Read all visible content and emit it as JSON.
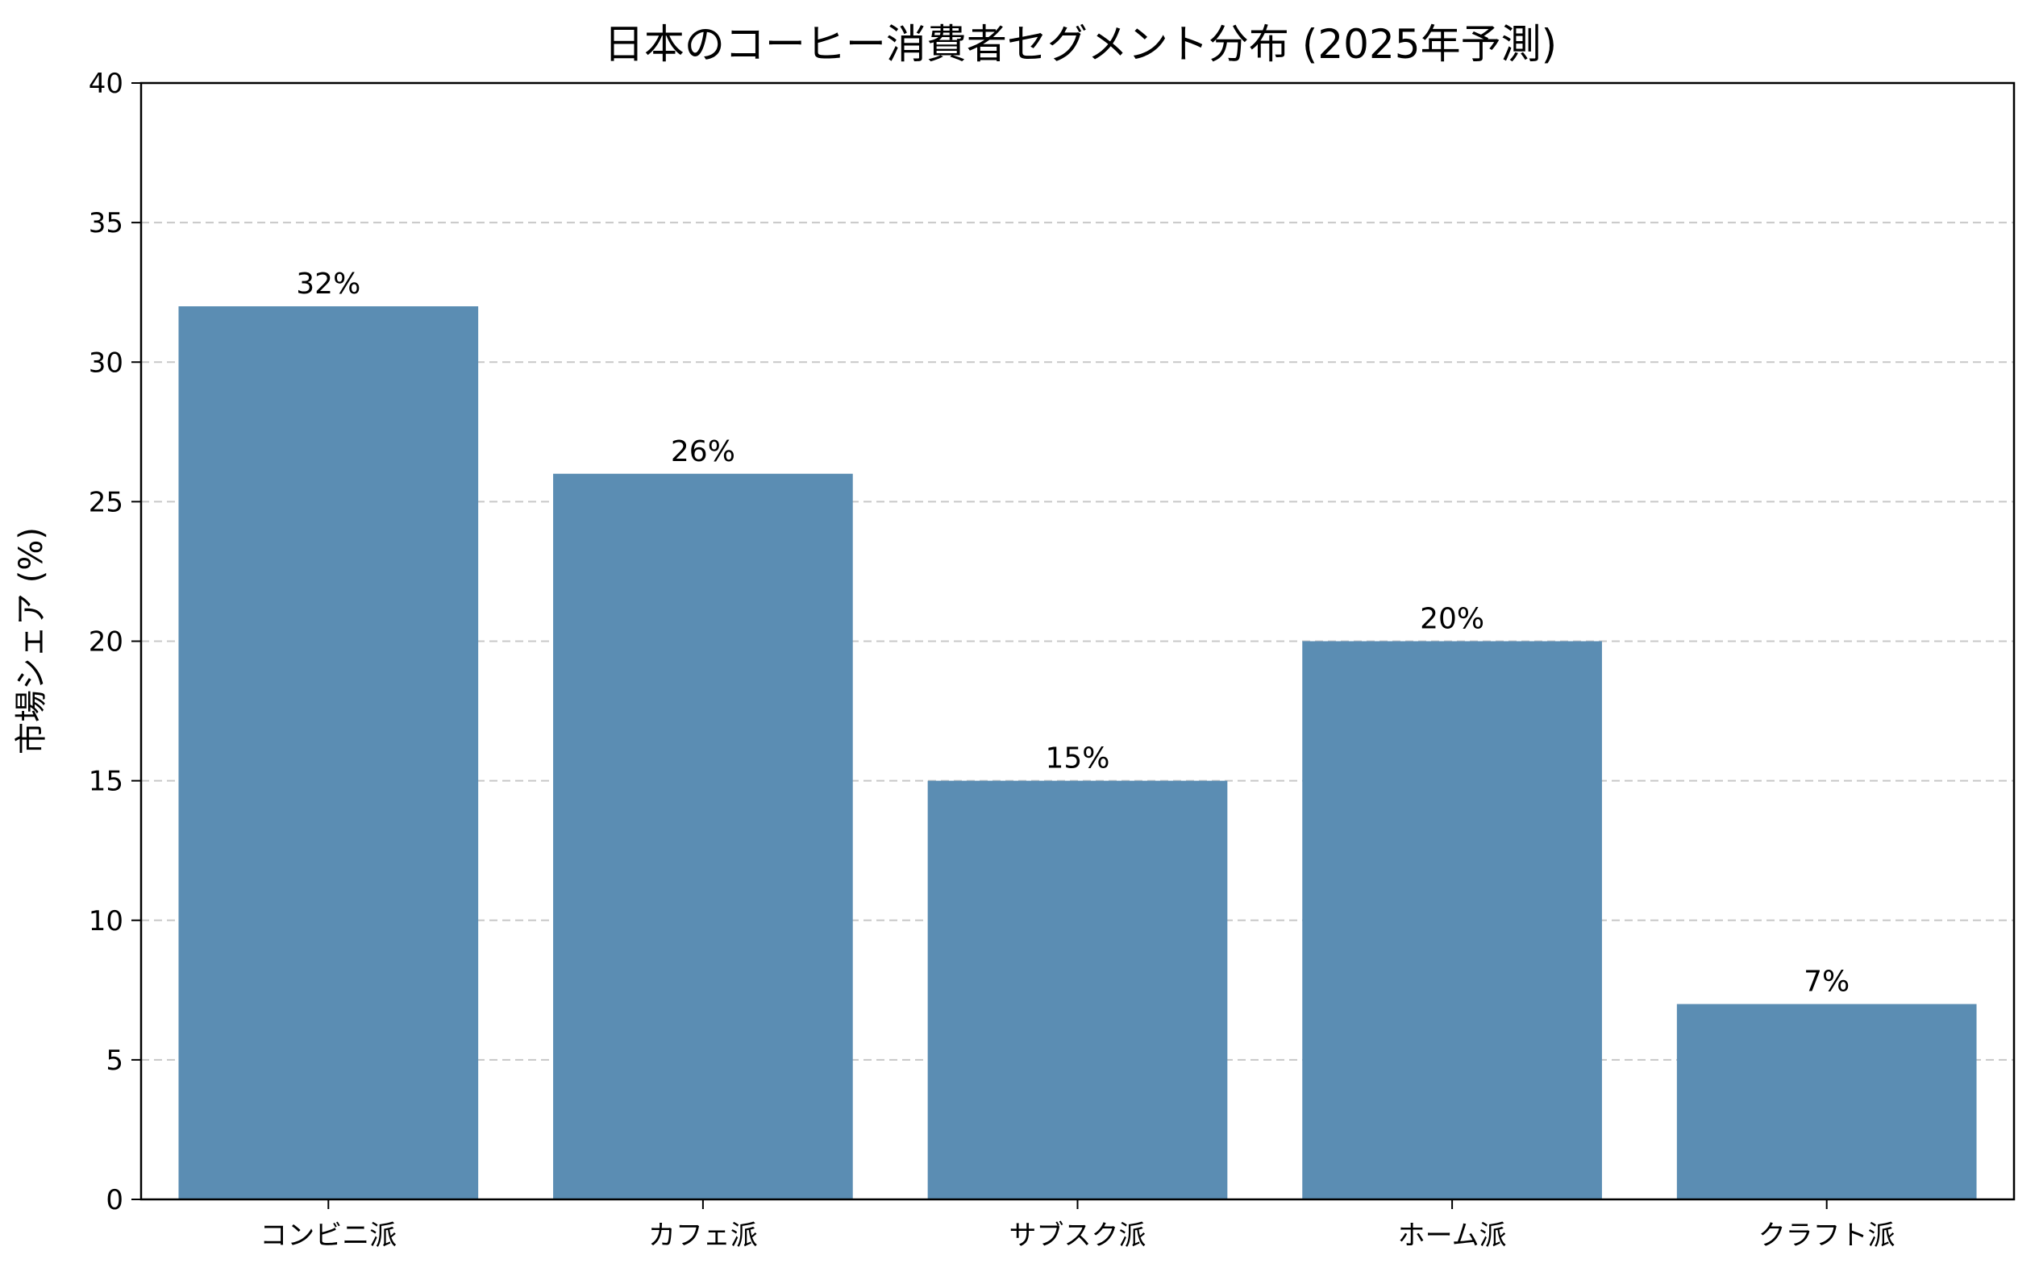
{
  "chart_data": {
    "type": "bar",
    "title": "日本のコーヒー消費者セグメント分布 (2025年予測)",
    "xlabel": "",
    "ylabel": "市場シェア (%)",
    "categories": [
      "コンビニ派",
      "カフェ派",
      "サブスク派",
      "ホーム派",
      "クラフト派"
    ],
    "values": [
      32,
      26,
      15,
      20,
      7
    ],
    "data_labels": [
      "32%",
      "26%",
      "15%",
      "20%",
      "7%"
    ],
    "ylim": [
      0,
      40
    ],
    "yticks": [
      0,
      5,
      10,
      15,
      20,
      25,
      30,
      35,
      40
    ],
    "ytick_labels": [
      "0",
      "5",
      "10",
      "15",
      "20",
      "25",
      "30",
      "35",
      "40"
    ],
    "grid": "horizontal dashed",
    "bar_color": "#5b8db3",
    "grid_color": "#c8c8c8",
    "axis_color": "#000000"
  }
}
